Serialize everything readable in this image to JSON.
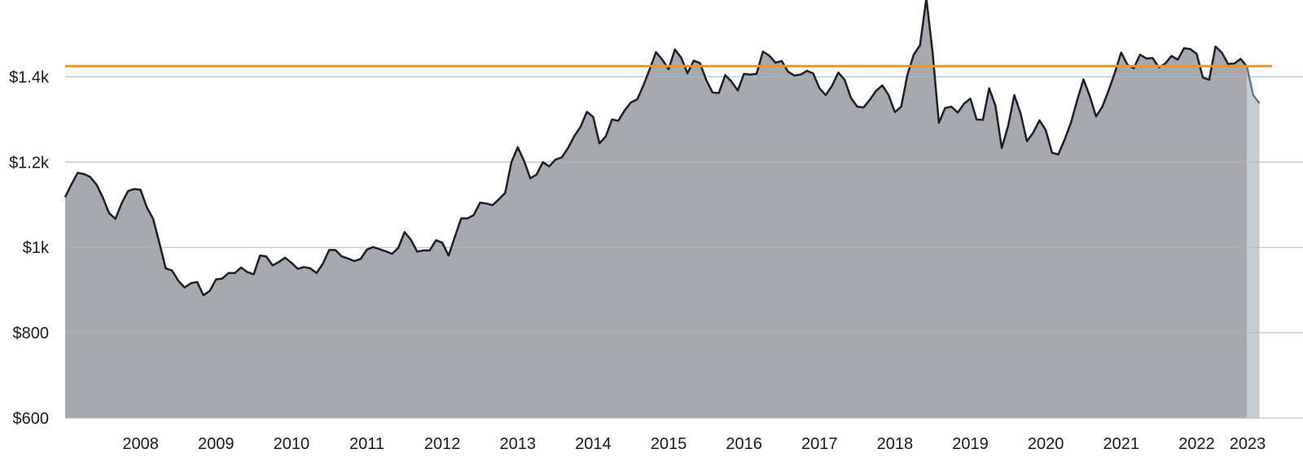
{
  "chart_data": {
    "type": "area",
    "title": "",
    "xlabel": "",
    "ylabel": "",
    "ylim": [
      600,
      1580
    ],
    "xlim": [
      "2007-07",
      "2023-07"
    ],
    "grid": true,
    "y_ticks": [
      600,
      800,
      1000,
      1200,
      1400
    ],
    "y_tick_labels": [
      "$600",
      "$800",
      "$1k",
      "$1.2k",
      "$1.4k"
    ],
    "x_tick_labels": [
      "2008",
      "2009",
      "2010",
      "2011",
      "2012",
      "2013",
      "2014",
      "2015",
      "2016",
      "2017",
      "2018",
      "2019",
      "2020",
      "2021",
      "2022",
      "2023"
    ],
    "reference_line": {
      "value": 1425,
      "color": "#f7941d"
    },
    "colors": {
      "area": "#a8a9ae",
      "line": "#1e1e2a",
      "projected_area": "#c5ccd3",
      "projected_line": "#6c7682",
      "grid": "#b5b5b5"
    },
    "series": [
      {
        "x": [
          "2007-07",
          "2007-08",
          "2007-09",
          "2007-10",
          "2007-11",
          "2007-12",
          "2008-01",
          "2008-02",
          "2008-03",
          "2008-04",
          "2008-05",
          "2008-06",
          "2008-07",
          "2008-08",
          "2008-09",
          "2008-10",
          "2008-11",
          "2008-12",
          "2009-01",
          "2009-02",
          "2009-03",
          "2009-04",
          "2009-05",
          "2009-06",
          "2009-07",
          "2009-08",
          "2009-09",
          "2009-10",
          "2009-11",
          "2009-12",
          "2010-01",
          "2010-02",
          "2010-03",
          "2010-04",
          "2010-05",
          "2010-06",
          "2010-07",
          "2010-08",
          "2010-09",
          "2010-10",
          "2010-11",
          "2010-12",
          "2011-01",
          "2011-02",
          "2011-03",
          "2011-04",
          "2011-05",
          "2011-06",
          "2011-07",
          "2011-08",
          "2011-09",
          "2011-10",
          "2011-11",
          "2011-12",
          "2012-01",
          "2012-02",
          "2012-03",
          "2012-04",
          "2012-05",
          "2012-06",
          "2012-07",
          "2012-08",
          "2012-09",
          "2012-10",
          "2012-11",
          "2012-12",
          "2013-01",
          "2013-02",
          "2013-03",
          "2013-04",
          "2013-05",
          "2013-06",
          "2013-07",
          "2013-08",
          "2013-09",
          "2013-10",
          "2013-11",
          "2013-12",
          "2014-01",
          "2014-02",
          "2014-03",
          "2014-04",
          "2014-05",
          "2014-06",
          "2014-07",
          "2014-08",
          "2014-09",
          "2014-10",
          "2014-11",
          "2014-12",
          "2015-01",
          "2015-02",
          "2015-03",
          "2015-04",
          "2015-05",
          "2015-06",
          "2015-07",
          "2015-08",
          "2015-09",
          "2015-10",
          "2015-11",
          "2015-12",
          "2016-01",
          "2016-02",
          "2016-03",
          "2016-04",
          "2016-05",
          "2016-06",
          "2016-07",
          "2016-08",
          "2016-09",
          "2016-10",
          "2016-11",
          "2016-12",
          "2017-01",
          "2017-02",
          "2017-03",
          "2017-04",
          "2017-05",
          "2017-06",
          "2017-07",
          "2017-08",
          "2017-09",
          "2017-10",
          "2017-11",
          "2017-12",
          "2018-01",
          "2018-02",
          "2018-03",
          "2018-04",
          "2018-05",
          "2018-06",
          "2018-07",
          "2018-08",
          "2018-09",
          "2018-10",
          "2018-11",
          "2018-12",
          "2019-01",
          "2019-02",
          "2019-03",
          "2019-04",
          "2019-05",
          "2019-06",
          "2019-07",
          "2019-08",
          "2019-09",
          "2019-10",
          "2019-11",
          "2019-12",
          "2020-01",
          "2020-02",
          "2020-03",
          "2020-04",
          "2020-05",
          "2020-06",
          "2020-07",
          "2020-08",
          "2020-09",
          "2020-10",
          "2020-11",
          "2020-12",
          "2021-01",
          "2021-02",
          "2021-03",
          "2021-04",
          "2021-05",
          "2021-06",
          "2021-07",
          "2021-08",
          "2021-09",
          "2021-10",
          "2021-11",
          "2021-12",
          "2022-01",
          "2022-02",
          "2022-03",
          "2022-04",
          "2022-05",
          "2022-06",
          "2022-07",
          "2022-08",
          "2022-09",
          "2022-10",
          "2022-11",
          "2022-12",
          "2023-01",
          "2023-02",
          "2023-03"
        ],
        "values": [
          1118,
          1148,
          1175,
          1172,
          1165,
          1147,
          1117,
          1080,
          1067,
          1104,
          1132,
          1137,
          1135,
          1094,
          1067,
          1010,
          951,
          946,
          922,
          906,
          916,
          919,
          888,
          898,
          925,
          927,
          940,
          940,
          953,
          942,
          937,
          981,
          979,
          958,
          966,
          976,
          964,
          950,
          954,
          951,
          940,
          962,
          994,
          994,
          979,
          974,
          968,
          973,
          995,
          1001,
          996,
          991,
          985,
          999,
          1036,
          1018,
          990,
          993,
          993,
          1017,
          1011,
          981,
          1025,
          1068,
          1068,
          1076,
          1105,
          1103,
          1099,
          1113,
          1128,
          1200,
          1235,
          1203,
          1162,
          1171,
          1200,
          1190,
          1206,
          1211,
          1233,
          1261,
          1283,
          1318,
          1306,
          1244,
          1260,
          1300,
          1297,
          1321,
          1340,
          1347,
          1380,
          1418,
          1458,
          1440,
          1418,
          1464,
          1445,
          1408,
          1438,
          1432,
          1392,
          1363,
          1362,
          1404,
          1389,
          1368,
          1407,
          1405,
          1407,
          1459,
          1450,
          1433,
          1437,
          1412,
          1403,
          1405,
          1414,
          1408,
          1373,
          1357,
          1379,
          1410,
          1393,
          1351,
          1330,
          1328,
          1346,
          1367,
          1380,
          1357,
          1317,
          1330,
          1405,
          1452,
          1474,
          1584,
          1457,
          1292,
          1327,
          1330,
          1316,
          1337,
          1349,
          1300,
          1299,
          1373,
          1332,
          1233,
          1284,
          1357,
          1314,
          1249,
          1269,
          1298,
          1275,
          1222,
          1218,
          1253,
          1292,
          1345,
          1394,
          1355,
          1307,
          1330,
          1368,
          1410,
          1457,
          1428,
          1420,
          1452,
          1443,
          1444,
          1422,
          1431,
          1449,
          1440,
          1467,
          1465,
          1454,
          1398,
          1393,
          1471,
          1457,
          1430,
          1431,
          1442,
          1424
        ]
      },
      {
        "name": "projected",
        "x": [
          "2023-03",
          "2023-04",
          "2023-05"
        ],
        "values": [
          1424,
          1357,
          1338
        ]
      }
    ]
  }
}
